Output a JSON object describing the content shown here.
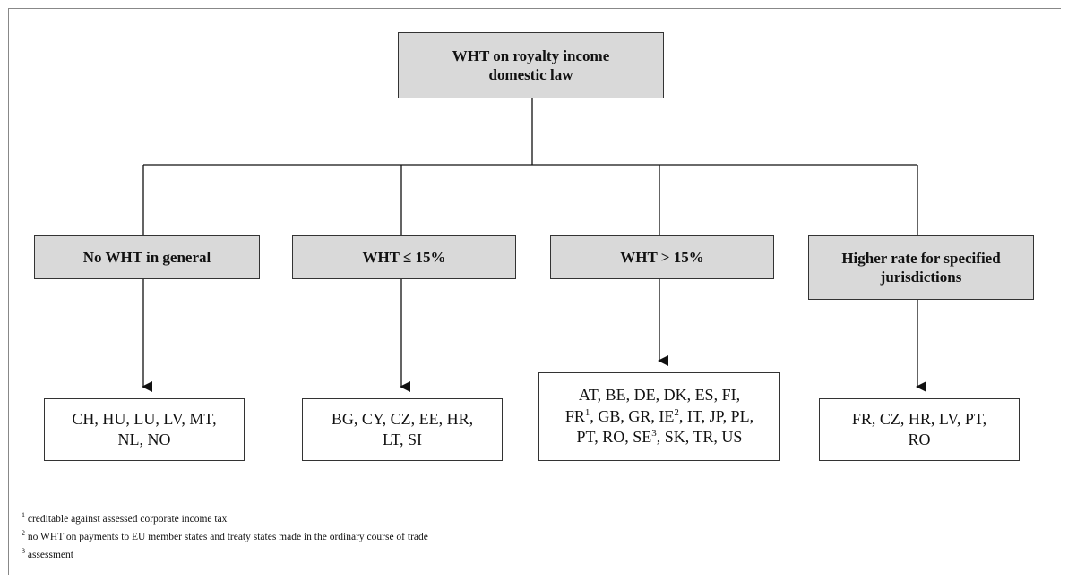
{
  "root": {
    "line1": "WHT on royalty income",
    "line2": "domestic law"
  },
  "categories": [
    {
      "label": "No WHT in general"
    },
    {
      "label": "WHT ≤ 15%"
    },
    {
      "label": "WHT > 15%"
    },
    {
      "line1": "Higher rate for specified",
      "line2": "jurisdictions"
    }
  ],
  "leaves": [
    {
      "lines": [
        "CH, HU, LU, LV, MT,",
        "NL, NO"
      ]
    },
    {
      "lines": [
        "BG, CY, CZ, EE, HR,",
        "LT, SI"
      ]
    },
    {
      "line1": "AT, BE, DE, DK, ES, FI,",
      "line2": {
        "a": "FR",
        "a_sup": "1",
        "b": ", GB, GR, IE",
        "b_sup": "2",
        "c": ", IT, JP, PL,"
      },
      "line3": {
        "a": "PT, RO, SE",
        "a_sup": "3",
        "b": ", SK, TR, US"
      }
    },
    {
      "lines": [
        "FR, CZ, HR, LV, PT,",
        "RO"
      ]
    }
  ],
  "footnotes": [
    {
      "mark": "1",
      "text": " creditable against assessed corporate income tax"
    },
    {
      "mark": "2",
      "text": " no WHT on payments to EU member states and treaty states made in the ordinary course of trade"
    },
    {
      "mark": "3",
      "text": " assessment"
    }
  ]
}
